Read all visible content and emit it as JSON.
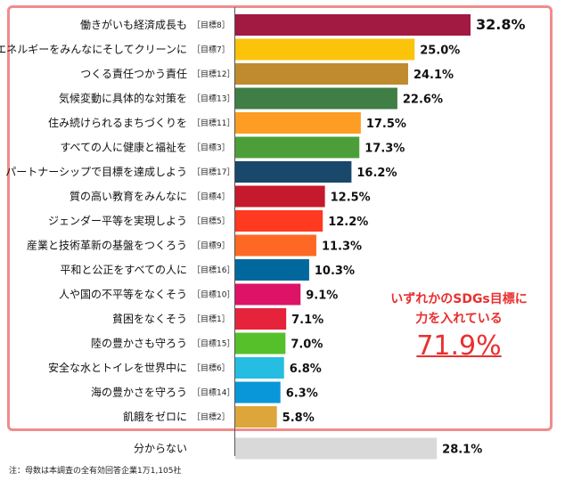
{
  "chart_data": {
    "type": "bar",
    "orientation": "horizontal",
    "categories": [
      {
        "label": "働きがいも経済成長も",
        "goal": "［目標8］",
        "value": 32.8,
        "display": "32.8%",
        "color": "#a21942"
      },
      {
        "label": "エネルギーをみんなにそしてクリーンに",
        "goal": "［目標7］",
        "value": 25.0,
        "display": "25.0%",
        "color": "#fcc30b"
      },
      {
        "label": "つくる責任つかう責任",
        "goal": "［目標12］",
        "value": 24.1,
        "display": "24.1%",
        "color": "#bf8b2e"
      },
      {
        "label": "気候変動に具体的な対策を",
        "goal": "［目標13］",
        "value": 22.6,
        "display": "22.6%",
        "color": "#3f7e44"
      },
      {
        "label": "住み続けられるまちづくりを",
        "goal": "［目標11］",
        "value": 17.5,
        "display": "17.5%",
        "color": "#fd9d24"
      },
      {
        "label": "すべての人に健康と福祉を",
        "goal": "［目標3］",
        "value": 17.3,
        "display": "17.3%",
        "color": "#4c9f38"
      },
      {
        "label": "パートナーシップで目標を達成しよう",
        "goal": "［目標17］",
        "value": 16.2,
        "display": "16.2%",
        "color": "#19486a"
      },
      {
        "label": "質の高い教育をみんなに",
        "goal": "［目標4］",
        "value": 12.5,
        "display": "12.5%",
        "color": "#c5192d"
      },
      {
        "label": "ジェンダー平等を実現しよう",
        "goal": "［目標5］",
        "value": 12.2,
        "display": "12.2%",
        "color": "#ff3a21"
      },
      {
        "label": "産業と技術革新の基盤をつくろう",
        "goal": "［目標9］",
        "value": 11.3,
        "display": "11.3%",
        "color": "#fd6925"
      },
      {
        "label": "平和と公正をすべての人に",
        "goal": "［目標16］",
        "value": 10.3,
        "display": "10.3%",
        "color": "#00689d"
      },
      {
        "label": "人や国の不平等をなくそう",
        "goal": "［目標10］",
        "value": 9.1,
        "display": "9.1%",
        "color": "#dd1367"
      },
      {
        "label": "貧困をなくそう",
        "goal": "［目標1］",
        "value": 7.1,
        "display": "7.1%",
        "color": "#e5243b"
      },
      {
        "label": "陸の豊かさも守ろう",
        "goal": "［目標15］",
        "value": 7.0,
        "display": "7.0%",
        "color": "#56c02b"
      },
      {
        "label": "安全な水とトイレを世界中に",
        "goal": "［目標6］",
        "value": 6.8,
        "display": "6.8%",
        "color": "#26bde2"
      },
      {
        "label": "海の豊かさを守ろう",
        "goal": "［目標14］",
        "value": 6.3,
        "display": "6.3%",
        "color": "#0a97d9"
      },
      {
        "label": "飢餓をゼロに",
        "goal": "［目標2］",
        "value": 5.8,
        "display": "5.8%",
        "color": "#dda63a"
      },
      {
        "label": "分からない",
        "goal": "",
        "value": 28.1,
        "display": "28.1%",
        "color": "#d9d9d9"
      }
    ],
    "xlim": [
      0,
      34
    ],
    "grid": false,
    "annotation": {
      "line1": "いずれかのSDGs目標に",
      "line2": "力を入れている",
      "value": "71.9%"
    }
  },
  "note": "注：母数は本調査の全有効回答企業1万1,105社"
}
